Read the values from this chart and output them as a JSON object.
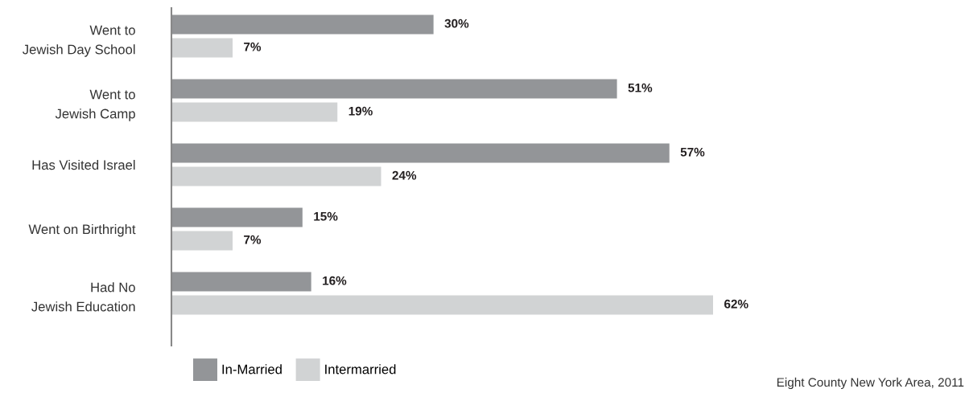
{
  "chart_data": {
    "type": "bar",
    "orientation": "horizontal",
    "categories": [
      "Went to\nJewish Day School",
      "Went to\nJewish Camp",
      "Has Visited Israel",
      "Went on Birthright",
      "Had No\nJewish Education"
    ],
    "series": [
      {
        "name": "In-Married",
        "color": "#939598",
        "values": [
          30,
          51,
          57,
          15,
          16
        ],
        "value_labels": [
          "30%",
          "51%",
          "57%",
          "15%",
          "16%"
        ]
      },
      {
        "name": "Intermarried",
        "color": "#d1d3d4",
        "values": [
          7,
          19,
          24,
          7,
          62
        ],
        "value_labels": [
          "7%",
          "19%",
          "24%",
          "7%",
          "62%"
        ]
      }
    ],
    "legend": "bottom left",
    "grid": false,
    "annotations": [
      "Eight County New York Area, 2011"
    ]
  }
}
